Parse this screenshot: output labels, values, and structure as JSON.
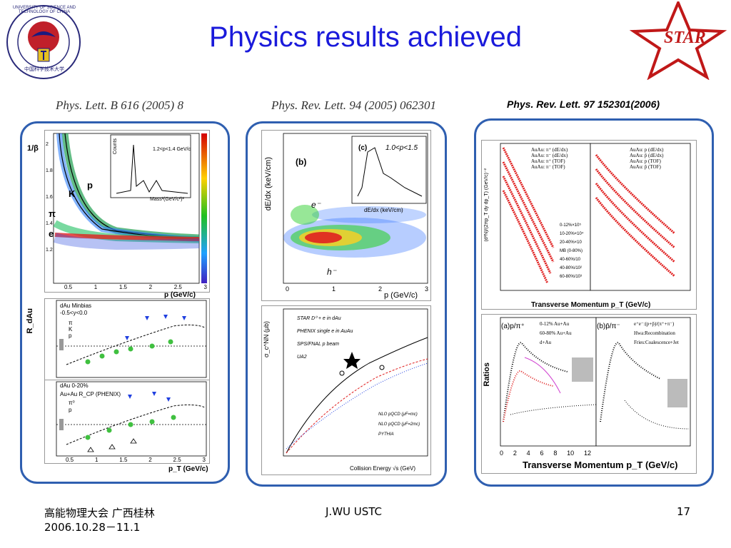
{
  "slide": {
    "title": "Physics results achieved",
    "logo_left": {
      "icon": "ustc-seal-icon",
      "ring_text": "UNIVERSITY OF SCIENCE AND TECHNOLOGY OF CHINA",
      "bottom_text": "中国科学技术大学"
    },
    "logo_right": {
      "icon": "star-logo-icon",
      "text": "STAR"
    }
  },
  "figures": {
    "left": {
      "caption": "Phys. Lett. B 616 (2005) 8",
      "top_plot": {
        "ylabel": "1/β",
        "xlabel": "p (GeV/c)",
        "yticks": [
          "2",
          "1.8",
          "1.6",
          "1.4",
          "1.2",
          "1"
        ],
        "xticks": [
          "0.5",
          "1",
          "1.5",
          "2",
          "2.5",
          "3"
        ],
        "band_labels": [
          "p",
          "K",
          "π",
          "e"
        ],
        "inset": {
          "ylabel": "Counts",
          "xlabel": "Mass²(GeV/c²)²",
          "text": "1.2<p<1.4 GeV/c",
          "yticks": [
            "500",
            "400",
            "300",
            "200",
            "100",
            "0"
          ],
          "xticks": [
            "0",
            "0.5",
            "1"
          ],
          "peak_labels": [
            "π",
            "K",
            "p"
          ]
        }
      },
      "mid_plot": {
        "ylabel": "R_dAu",
        "legend_title": "dAu Minbias",
        "legend_sub": "-0.5<y<0.0",
        "legend_items": [
          "π",
          "K",
          "p"
        ],
        "yticks": [
          "2",
          "1.8",
          "1.6",
          "1.4",
          "1.2",
          "1",
          "0.8",
          "0.6",
          "0.4",
          "0.2"
        ]
      },
      "bot_plot": {
        "legend_title": "dAu 0-20%",
        "legend_sub": "Au+Au R_CP (PHENIX)",
        "legend_items": [
          "π⁰",
          "p"
        ],
        "xlabel": "p_T (GeV/c)",
        "yticks": [
          "1.8",
          "1.6",
          "1.4",
          "1.2",
          "1",
          "0.8",
          "0.6",
          "0.4",
          "0.2"
        ],
        "xticks": [
          "0.5",
          "1",
          "1.5",
          "2",
          "2.5",
          "3"
        ]
      }
    },
    "middle": {
      "caption": "Phys. Rev. Lett. 94 (2005) 062301",
      "top_plot": {
        "ylabel": "dE/dx (keV/cm)",
        "xlabel": "p (GeV/c)",
        "yticks": [
          "6",
          "4",
          "2"
        ],
        "xticks": [
          "0",
          "1",
          "2",
          "3"
        ],
        "panel_label": "(b)",
        "band_labels": [
          "e⁻",
          "h⁻"
        ],
        "inset": {
          "panel_label": "(c)",
          "text": "1.0<p<1.5",
          "ylabel": "Counts",
          "xlabel": "dE/dx (keV/cm)",
          "labels": [
            "h⁻",
            "e±"
          ],
          "xticks": [
            "2",
            "3",
            "4"
          ],
          "yticks": [
            "10³",
            "10²",
            "10"
          ]
        }
      },
      "bot_plot": {
        "ylabel": "σ_c^NN (μb)",
        "xlabel": "Collision Energy √s (GeV)",
        "legend": [
          "STAR D⁰ + e in dAu",
          "PHENIX single e in AuAu",
          "SPS/FNAL p beam",
          "UA2"
        ],
        "curves": [
          "NLO pQCD (μF=mc)",
          "NLO pQCD (μF=2mc)",
          "PYTHIA"
        ],
        "yticks": [
          "10³",
          "10²",
          "10"
        ],
        "xticks": [
          "10",
          "10²",
          "10³"
        ]
      }
    },
    "right": {
      "caption": "Phys. Rev. Lett. 97 152301(2006)",
      "top_plot": {
        "ylabel": "(d²N)/(2πp_T dy dp_T) (GeV/c)⁻²",
        "xlabel": "Transverse Momentum p_T (GeV/c)",
        "left_legend": [
          "AuAu: π⁺ (dE/dx)",
          "AuAu: π⁻ (dE/dx)",
          "AuAu: π⁺ (TOF)",
          "AuAu: π⁻ (TOF)"
        ],
        "right_legend": [
          "AuAu: p (dE/dx)",
          "AuAu: p̄ (dE/dx)",
          "AuAu: p (TOF)",
          "AuAu: p̄ (TOF)"
        ],
        "centralities": [
          "0-12%×10⁵",
          "10-20%×10⁴",
          "20-40%×10",
          "MB (0-80%)",
          "40-60%/10",
          "40-80%/10²",
          "60-80%/10³"
        ],
        "yticks": [
          "10⁵",
          "10²",
          "10⁻¹",
          "10⁻⁴",
          "10⁻⁷",
          "10⁻¹⁰",
          "10⁻¹³",
          "10⁻¹⁶"
        ],
        "xticks_left": [
          "0",
          "2",
          "4",
          "6",
          "8",
          "10",
          "12",
          "14",
          "16"
        ],
        "xticks_right": [
          "0",
          "2",
          "4",
          "6",
          "8",
          "10",
          "12"
        ]
      },
      "bot_plot": {
        "ylabel": "Ratios",
        "xlabel": "Transverse Momentum p_T (GeV/c)",
        "panel_a": "(a)p/π⁺",
        "panel_b": "(b)p̄/π⁻",
        "legend_a": [
          "0-12% Au+Au",
          "60-80% Au+Au",
          "d+Au"
        ],
        "legend_b": [
          "e⁺e⁻:(p+p̄)/(π⁺+π⁻)",
          "Hwa:Recombination",
          "Fries:Coalescence+Jet"
        ],
        "yticks": [
          "1",
          "10⁻¹"
        ],
        "xticks": [
          "0",
          "2",
          "4",
          "6",
          "8",
          "10",
          "12"
        ]
      }
    }
  },
  "footer": {
    "conference": "高能物理大会 广西桂林",
    "dates": "2006.10.28－11.1",
    "author": "J.WU USTC",
    "page_number": "17"
  }
}
